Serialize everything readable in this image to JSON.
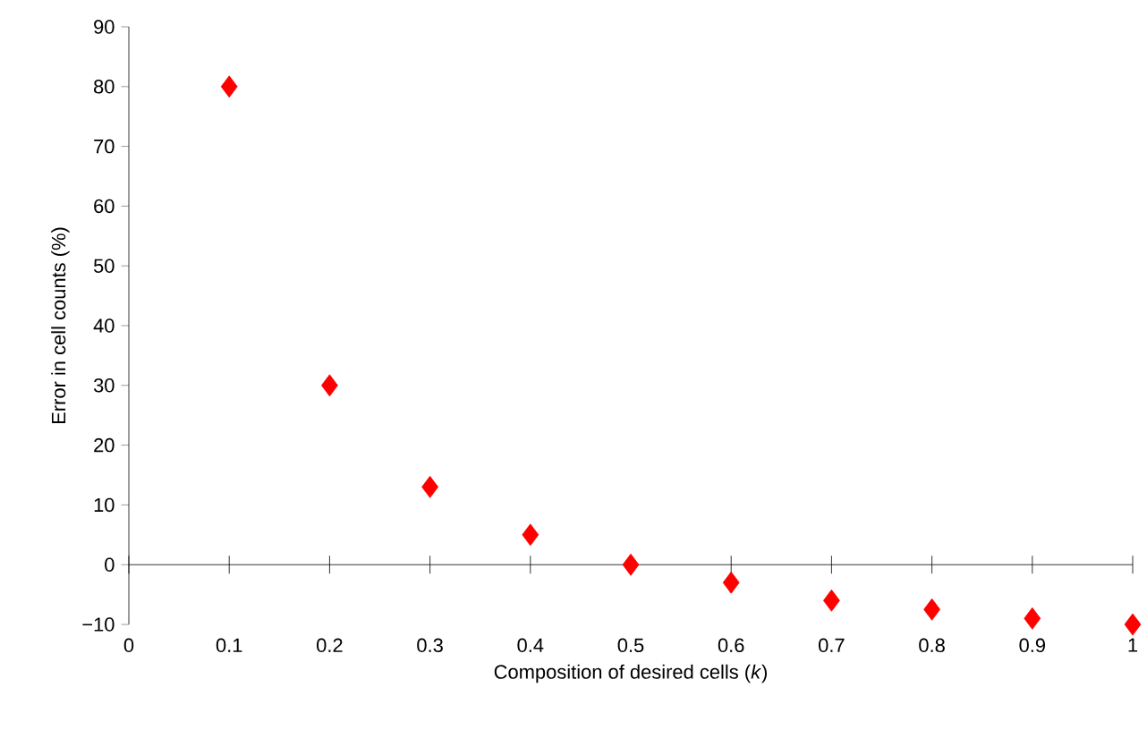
{
  "chart_data": {
    "type": "scatter",
    "xlabel": "Composition of desired cells (*k*)",
    "ylabel": "Error in cell counts (%)",
    "x": [
      0.1,
      0.2,
      0.3,
      0.4,
      0.5,
      0.6,
      0.7,
      0.8,
      0.9,
      1
    ],
    "series": [
      {
        "color": "#ff0000",
        "values": [
          80,
          30,
          13,
          5,
          0,
          -3,
          -6,
          -7.5,
          -9,
          -10
        ]
      }
    ],
    "marker": "diamond",
    "xlim": [
      0,
      1
    ],
    "ylim": [
      -10,
      90
    ],
    "xticks": [
      0,
      0.1,
      0.2,
      0.3,
      0.4,
      0.5,
      0.6,
      0.7,
      0.8,
      0.9,
      1
    ],
    "yticks": [
      {
        "value": -10,
        "label": "−10"
      },
      0,
      10,
      20,
      30,
      40,
      50,
      60,
      70,
      80,
      90
    ]
  }
}
